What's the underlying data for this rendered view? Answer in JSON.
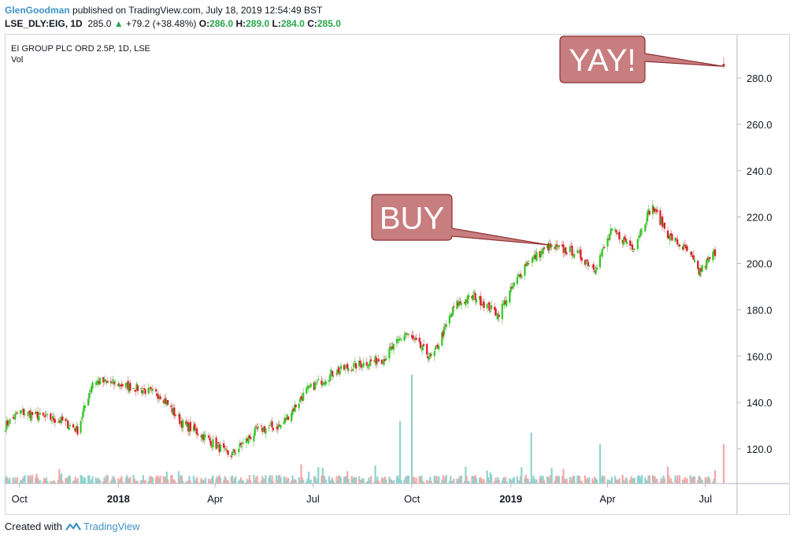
{
  "header": {
    "author": "GlenGoodman",
    "published_text": "published on TradingView.com, July 18, 2019 12:54:49 BST",
    "symbol": "LSE_DLY:EIG, 1D",
    "last": "285.0",
    "change": "+79.2 (+38.48%)",
    "o_label": "O:",
    "o_value": "286.0",
    "h_label": "H:",
    "h_value": "289.0",
    "l_label": "L:",
    "l_value": "284.0",
    "c_label": "C:",
    "c_value": "285.0"
  },
  "legend": {
    "title": "EI GROUP PLC ORD 2.5P, 1D, LSE",
    "vol": "Vol"
  },
  "footer": {
    "created_with": "Created with",
    "brand": "TradingView"
  },
  "colors": {
    "up": "#2fc91f",
    "down": "#e2172a",
    "vol_up": "#8fd3cd",
    "vol_down": "#f3a8a7",
    "callout_fill": "#c87d7f",
    "callout_stroke": "#8c2f31",
    "accent": "#3d93c7"
  },
  "chart_data": {
    "type": "candlestick",
    "title": "EI GROUP PLC ORD 2.5P, 1D, LSE",
    "x_ticks": [
      "Oct",
      "2018",
      "Apr",
      "Jul",
      "Oct",
      "2019",
      "Apr",
      "Jul"
    ],
    "y_ticks": [
      "120.0",
      "140.0",
      "160.0",
      "180.0",
      "200.0",
      "220.0",
      "240.0",
      "260.0",
      "280.0"
    ],
    "ylim": [
      104,
      300
    ],
    "x_range": [
      "2017-09-18",
      "2019-07-18"
    ],
    "grid": false,
    "price_path": [
      [
        "2017-09-18",
        130
      ],
      [
        "2017-10-01",
        136
      ],
      [
        "2017-10-20",
        134
      ],
      [
        "2017-11-10",
        132
      ],
      [
        "2017-11-24",
        128
      ],
      [
        "2017-12-08",
        149
      ],
      [
        "2017-12-15",
        149
      ],
      [
        "2018-01-01",
        148
      ],
      [
        "2018-01-20",
        146
      ],
      [
        "2018-02-10",
        143
      ],
      [
        "2018-03-01",
        131
      ],
      [
        "2018-03-20",
        126
      ],
      [
        "2018-04-15",
        117
      ],
      [
        "2018-05-10",
        128
      ],
      [
        "2018-06-01",
        130
      ],
      [
        "2018-06-25",
        145
      ],
      [
        "2018-07-20",
        153
      ],
      [
        "2018-08-10",
        156
      ],
      [
        "2018-09-05",
        159
      ],
      [
        "2018-09-25",
        170
      ],
      [
        "2018-10-20",
        159
      ],
      [
        "2018-11-10",
        182
      ],
      [
        "2018-11-28",
        186
      ],
      [
        "2018-12-20",
        178
      ],
      [
        "2019-01-15",
        200
      ],
      [
        "2019-02-05",
        207
      ],
      [
        "2019-03-01",
        205
      ],
      [
        "2019-03-20",
        198
      ],
      [
        "2019-04-05",
        214
      ],
      [
        "2019-04-25",
        207
      ],
      [
        "2019-05-12",
        225
      ],
      [
        "2019-05-28",
        212
      ],
      [
        "2019-06-15",
        205
      ],
      [
        "2019-06-25",
        196
      ],
      [
        "2019-07-10",
        205
      ]
    ],
    "last_bar": {
      "date": "2019-07-18",
      "open": 286.0,
      "high": 289.0,
      "low": 284.0,
      "close": 285.0
    },
    "volume_spikes": [
      {
        "date": "2018-09-20",
        "height": 132,
        "dir": "up"
      },
      {
        "date": "2018-10-01",
        "height": 152,
        "dir": "up"
      },
      {
        "date": "2019-01-20",
        "height": 127,
        "dir": "up"
      },
      {
        "date": "2019-03-25",
        "height": 122,
        "dir": "up"
      },
      {
        "date": "2019-07-18",
        "height": 122,
        "dir": "down"
      }
    ],
    "annotations": [
      {
        "text": "BUY",
        "target_date": "2019-02-05",
        "target_value": 208
      },
      {
        "text": "YAY!",
        "target_date": "2019-07-18",
        "target_value": 285
      }
    ]
  }
}
